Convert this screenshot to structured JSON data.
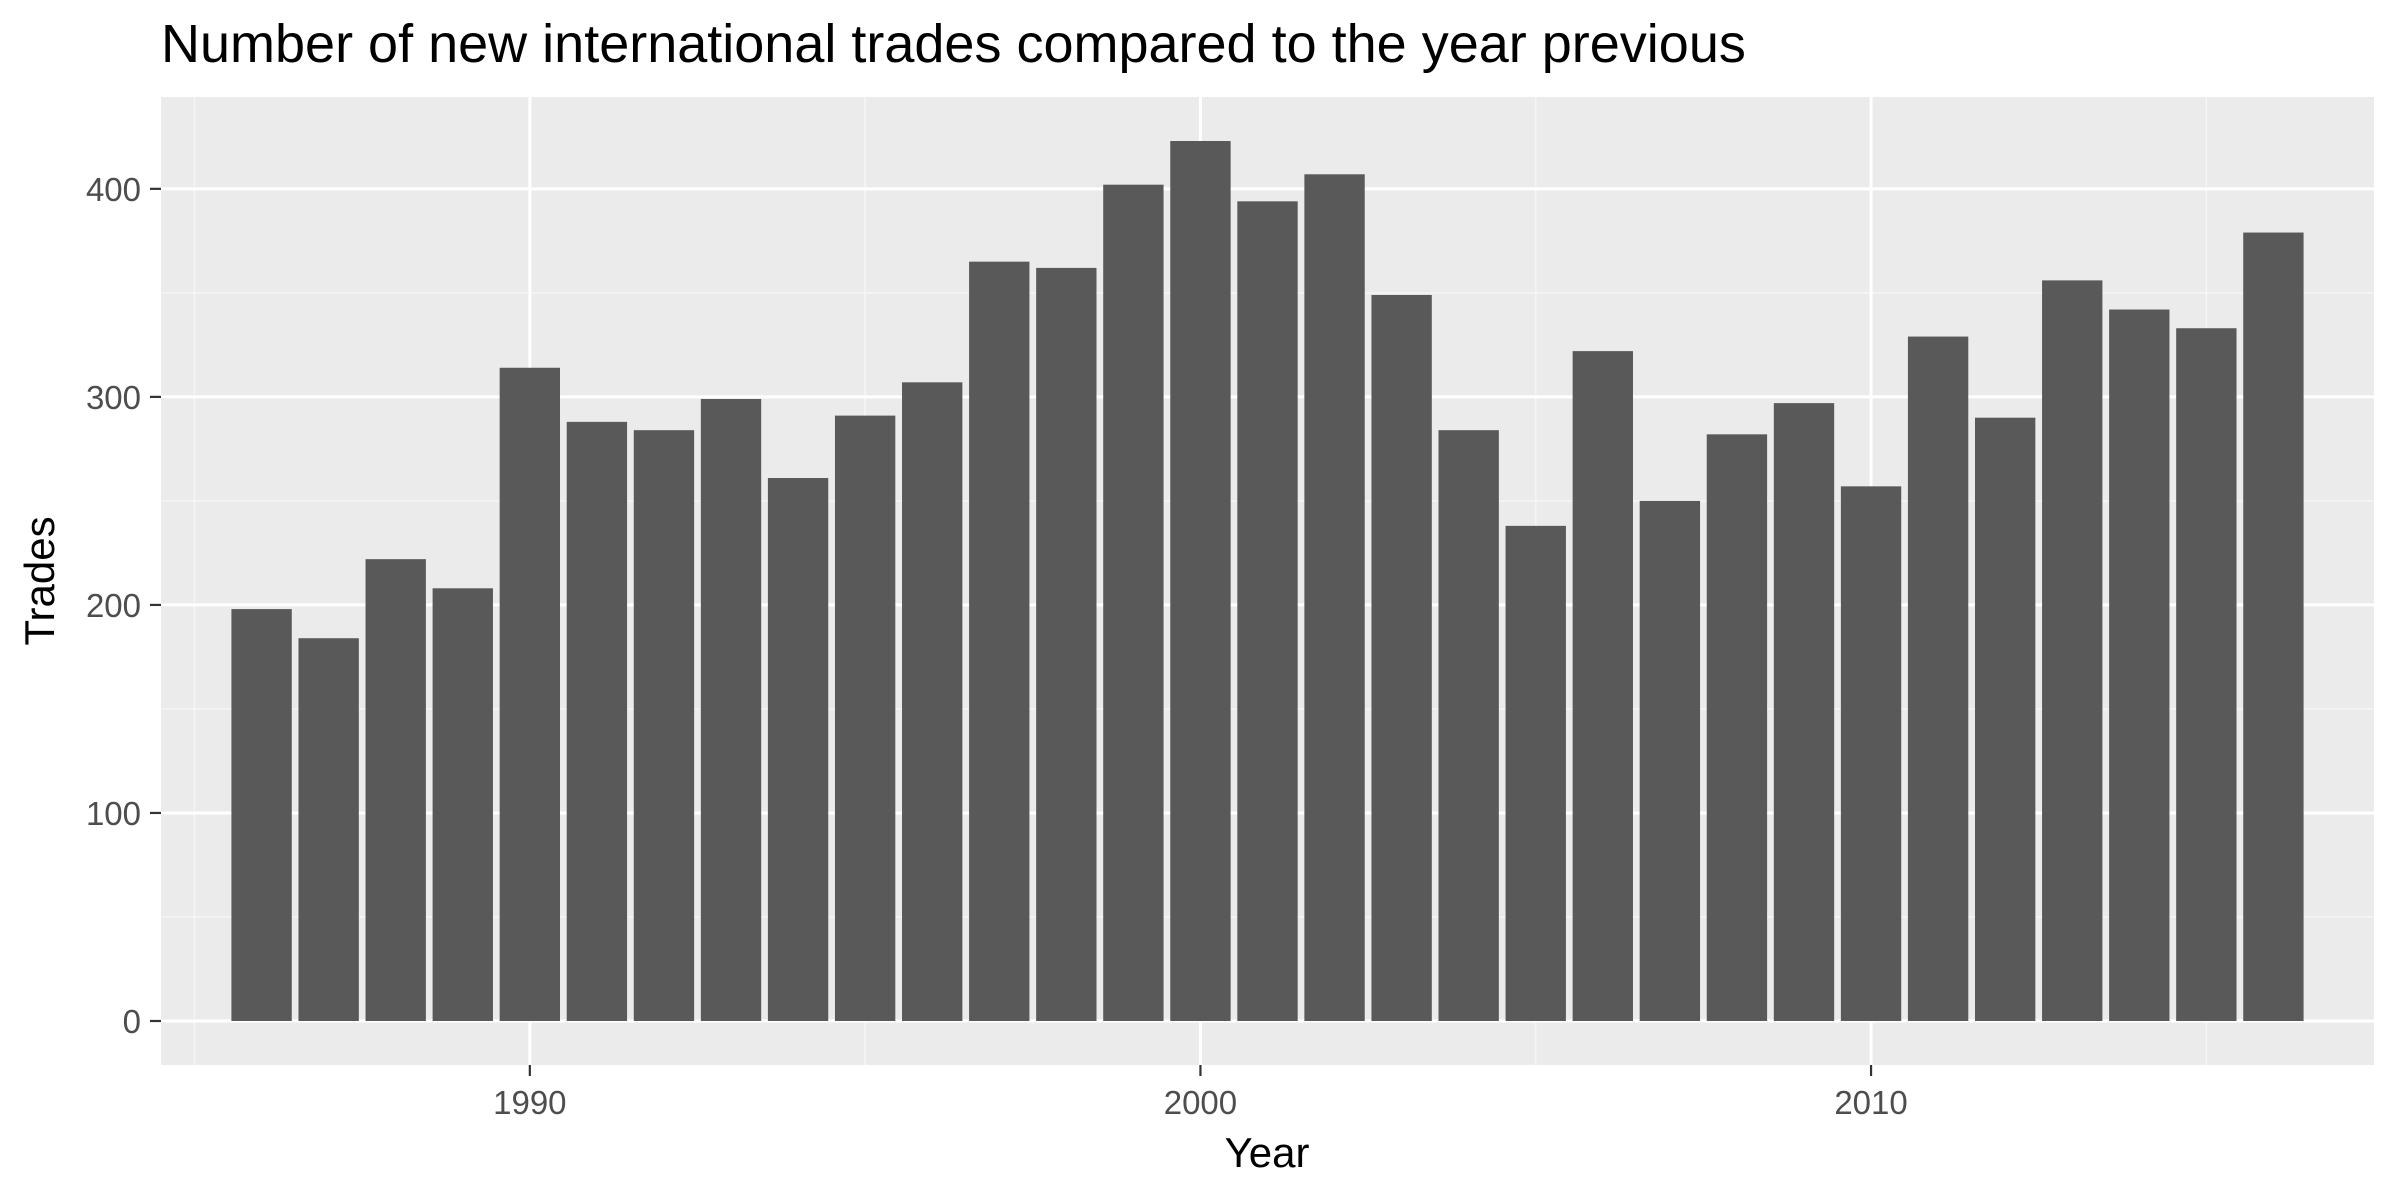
{
  "chart_data": {
    "type": "bar",
    "title": "Number of new international trades compared to the year previous",
    "xlabel": "Year",
    "ylabel": "Trades",
    "x": [
      1986,
      1987,
      1988,
      1989,
      1990,
      1991,
      1992,
      1993,
      1994,
      1995,
      1996,
      1997,
      1998,
      1999,
      2000,
      2001,
      2002,
      2003,
      2004,
      2005,
      2006,
      2007,
      2008,
      2009,
      2010,
      2011,
      2012,
      2013,
      2014,
      2015,
      2016
    ],
    "values": [
      198,
      184,
      222,
      208,
      314,
      288,
      284,
      299,
      261,
      291,
      307,
      365,
      362,
      402,
      423,
      394,
      407,
      349,
      284,
      238,
      322,
      250,
      282,
      297,
      257,
      329,
      290,
      356,
      342,
      333,
      379
    ],
    "xlim": [
      1984.5,
      2017.5
    ],
    "ylim": [
      -21.15,
      444.15
    ],
    "x_ticks": [
      1990,
      2000,
      2010
    ],
    "x_tick_labels": [
      "1990",
      "2000",
      "2010"
    ],
    "y_ticks": [
      0,
      100,
      200,
      300,
      400
    ],
    "y_tick_labels": [
      "0",
      "100",
      "200",
      "300",
      "400"
    ],
    "grid": true,
    "legend": "none",
    "colors": {
      "bar": "#595959",
      "panel": "#EBEBEB",
      "grid_major": "#FFFFFF",
      "grid_minor": "#F5F5F5",
      "tick_label": "#4D4D4D",
      "tick_mark": "#333333",
      "text": "#000000"
    }
  }
}
